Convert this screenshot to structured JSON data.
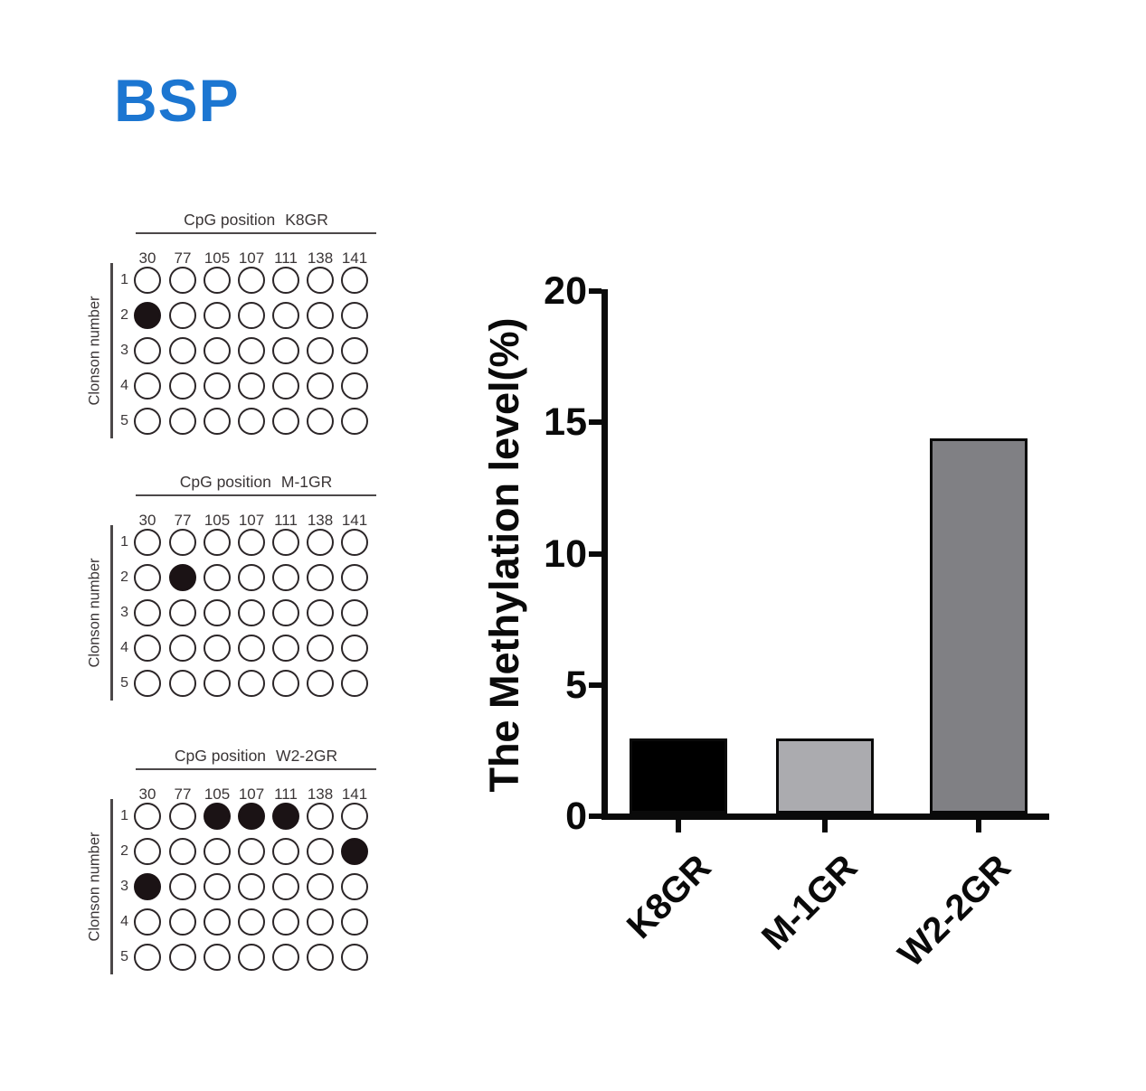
{
  "figure_title": "BSP",
  "colors": {
    "title_blue": "#1c76d1",
    "axis_black": "#0a0a0a",
    "diagram_line": "#4c4849",
    "circle_stroke": "#2b2527",
    "circle_filled": "#1b1315"
  },
  "cpg_panels": {
    "title_prefix": "CpG position",
    "side_label": "Clonson number",
    "positions": [
      "30",
      "77",
      "105",
      "107",
      "111",
      "138",
      "141"
    ],
    "row_labels": [
      "1",
      "2",
      "3",
      "4",
      "5"
    ],
    "panels": [
      {
        "name": "K8GR",
        "filled": [
          [
            1,
            0
          ]
        ]
      },
      {
        "name": "M-1GR",
        "filled": [
          [
            1,
            1
          ]
        ]
      },
      {
        "name": "W2-2GR",
        "filled": [
          [
            0,
            2
          ],
          [
            0,
            3
          ],
          [
            0,
            4
          ],
          [
            1,
            6
          ],
          [
            2,
            0
          ]
        ]
      }
    ]
  },
  "chart_data": {
    "type": "bar",
    "categories": [
      "K8GR",
      "M-1GR",
      "W2-2GR"
    ],
    "values": [
      2.86,
      2.86,
      14.29
    ],
    "title": "",
    "xlabel": "",
    "ylabel": "The Methylation level(%)",
    "ylim": [
      0,
      20
    ],
    "yticks": [
      0,
      5,
      10,
      15,
      20
    ],
    "bar_colors": [
      "#000000",
      "#ababaf",
      "#808084"
    ],
    "grid": false,
    "legend": false
  }
}
